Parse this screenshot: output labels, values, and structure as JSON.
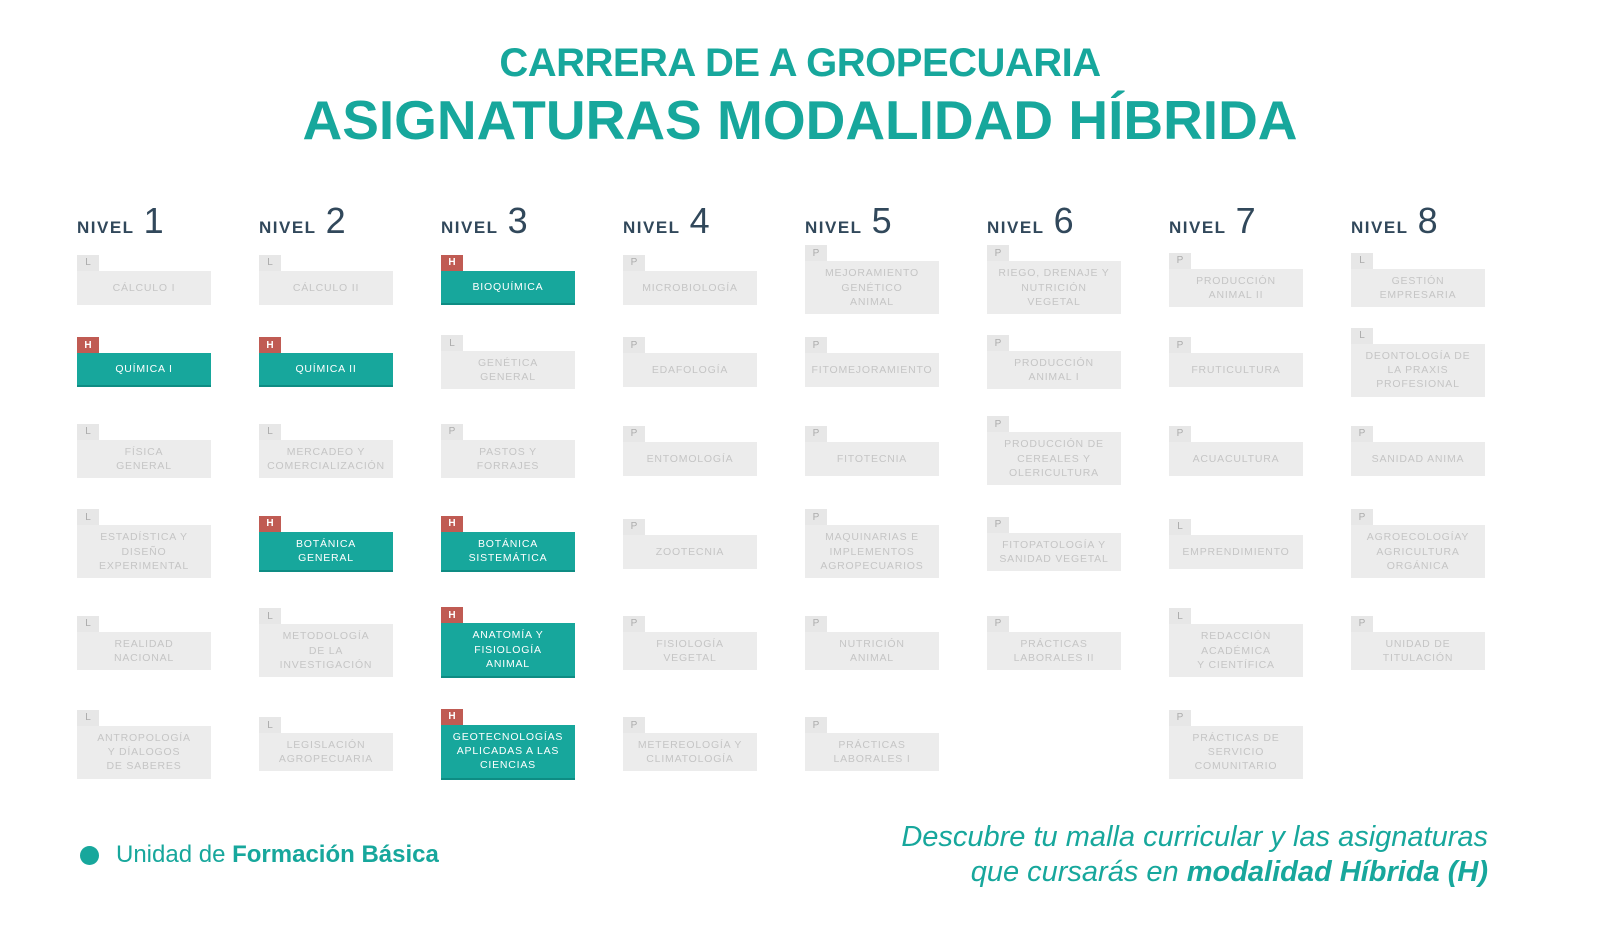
{
  "header": {
    "supertitle": "CARRERA DE A GROPECUARIA",
    "title": "ASIGNATURAS MODALIDAD HÍBRIDA"
  },
  "colors": {
    "accent_teal": "#17A79C",
    "hybrid_tab_red": "#C05B53",
    "heading_navy": "#31485B",
    "card_gray_bg": "#ECECEC",
    "card_gray_text": "#C5C5C5"
  },
  "levels": [
    {
      "label": "NIVEL",
      "number": "1",
      "courses": [
        {
          "row": 1,
          "tag": "L",
          "name": "CÁLCULO I"
        },
        {
          "row": 2,
          "tag": "H",
          "name": "QUÍMICA I"
        },
        {
          "row": 3,
          "tag": "L",
          "name": "FÍSICA\nGENERAL"
        },
        {
          "row": 4,
          "tag": "L",
          "name": "ESTADÍSTICA Y\nDISEÑO\nEXPERIMENTAL"
        },
        {
          "row": 5,
          "tag": "L",
          "name": "REALIDAD\nNACIONAL"
        },
        {
          "row": 6,
          "tag": "L",
          "name": "ANTROPOLOGÍA\nY DÍALOGOS\nDE SABERES"
        }
      ]
    },
    {
      "label": "NIVEL",
      "number": "2",
      "courses": [
        {
          "row": 1,
          "tag": "L",
          "name": "CÁLCULO II"
        },
        {
          "row": 2,
          "tag": "H",
          "name": "QUÍMICA II"
        },
        {
          "row": 3,
          "tag": "L",
          "name": "MERCADEO Y\nCOMERCIALIZACIÓN"
        },
        {
          "row": 4,
          "tag": "H",
          "name": "BOTÁNICA\nGENERAL"
        },
        {
          "row": 5,
          "tag": "L",
          "name": "METODOLOGÍA\nDE LA\nINVESTIGACIÓN"
        },
        {
          "row": 6,
          "tag": "L",
          "name": "LEGISLACIÓN\nAGROPECUARIA"
        }
      ]
    },
    {
      "label": "NIVEL",
      "number": "3",
      "courses": [
        {
          "row": 1,
          "tag": "H",
          "name": "BIOQUÍMICA"
        },
        {
          "row": 2,
          "tag": "L",
          "name": "GENÉTICA\nGENERAL"
        },
        {
          "row": 3,
          "tag": "P",
          "name": "PASTOS Y\nFORRAJES"
        },
        {
          "row": 4,
          "tag": "H",
          "name": "BOTÁNICA\nSISTEMÁTICA"
        },
        {
          "row": 5,
          "tag": "H",
          "name": "ANATOMÍA Y\nFISIOLOGÍA\nANIMAL"
        },
        {
          "row": 6,
          "tag": "H",
          "name": "GEOTECNOLOGÍAS\nAPLICADAS A LAS\nCIENCIAS"
        }
      ]
    },
    {
      "label": "NIVEL",
      "number": "4",
      "courses": [
        {
          "row": 1,
          "tag": "P",
          "name": "MICROBIOLOGÍA"
        },
        {
          "row": 2,
          "tag": "P",
          "name": "EDAFOLOGÍA"
        },
        {
          "row": 3,
          "tag": "P",
          "name": "ENTOMOLOGÍA"
        },
        {
          "row": 4,
          "tag": "P",
          "name": "ZOOTECNIA"
        },
        {
          "row": 5,
          "tag": "P",
          "name": "FISIOLOGÍA\nVEGETAL"
        },
        {
          "row": 6,
          "tag": "P",
          "name": "METEREOLOGÍA Y\nCLIMATOLOGÍA"
        }
      ]
    },
    {
      "label": "NIVEL",
      "number": "5",
      "courses": [
        {
          "row": 1,
          "tag": "P",
          "name": "MEJORAMIENTO\nGENÉTICO\nANIMAL"
        },
        {
          "row": 2,
          "tag": "P",
          "name": "FITOMEJORAMIENTO"
        },
        {
          "row": 3,
          "tag": "P",
          "name": "FITOTECNIA"
        },
        {
          "row": 4,
          "tag": "P",
          "name": "MAQUINARIAS E\nIMPLEMENTOS\nAGROPECUARIOS"
        },
        {
          "row": 5,
          "tag": "P",
          "name": "NUTRICIÓN\nANIMAL"
        },
        {
          "row": 6,
          "tag": "P",
          "name": "PRÁCTICAS\nLABORALES I"
        }
      ]
    },
    {
      "label": "NIVEL",
      "number": "6",
      "courses": [
        {
          "row": 1,
          "tag": "P",
          "name": "RIEGO, DRENAJE Y\nNUTRICIÓN\nVEGETAL"
        },
        {
          "row": 2,
          "tag": "P",
          "name": "PRODUCCIÓN\nANIMAL I"
        },
        {
          "row": 3,
          "tag": "P",
          "name": "PRODUCCIÓN DE\nCEREALES Y\nOLERICULTURA"
        },
        {
          "row": 4,
          "tag": "P",
          "name": "FITOPATOLOGÍA Y\nSANIDAD VEGETAL"
        },
        {
          "row": 5,
          "tag": "P",
          "name": "PRÁCTICAS\nLABORALES II"
        }
      ]
    },
    {
      "label": "NIVEL",
      "number": "7",
      "courses": [
        {
          "row": 1,
          "tag": "P",
          "name": "PRODUCCIÓN\nANIMAL II"
        },
        {
          "row": 2,
          "tag": "P",
          "name": "FRUTICULTURA"
        },
        {
          "row": 3,
          "tag": "P",
          "name": "ACUACULTURA"
        },
        {
          "row": 4,
          "tag": "L",
          "name": "EMPRENDIMIENTO"
        },
        {
          "row": 5,
          "tag": "L",
          "name": "REDACCIÓN\nACADÉMICA\nY CIENTÍFICA"
        },
        {
          "row": 6,
          "tag": "P",
          "name": "PRÁCTICAS DE\nSERVICIO\nCOMUNITARIO"
        }
      ]
    },
    {
      "label": "NIVEL",
      "number": "8",
      "courses": [
        {
          "row": 1,
          "tag": "L",
          "name": "GESTIÓN\nEMPRESARIA"
        },
        {
          "row": 2,
          "tag": "L",
          "name": "DEONTOLOGÍA DE\nLA PRAXIS\nPROFESIONAL"
        },
        {
          "row": 3,
          "tag": "P",
          "name": "SANIDAD ANIMA"
        },
        {
          "row": 4,
          "tag": "P",
          "name": "AGROECOLOGÍAY\nAGRICULTURA\nORGÁNICA"
        },
        {
          "row": 5,
          "tag": "P",
          "name": "UNIDAD DE\nTITULACIÓN"
        }
      ]
    }
  ],
  "legend": {
    "prefix": "Unidad de ",
    "bold": "Formación Básica"
  },
  "footer": {
    "line1": "Descubre tu malla curricular y las asignaturas",
    "line2_prefix": "que cursarás en ",
    "line2_bold": "modalidad Híbrida (H)"
  }
}
